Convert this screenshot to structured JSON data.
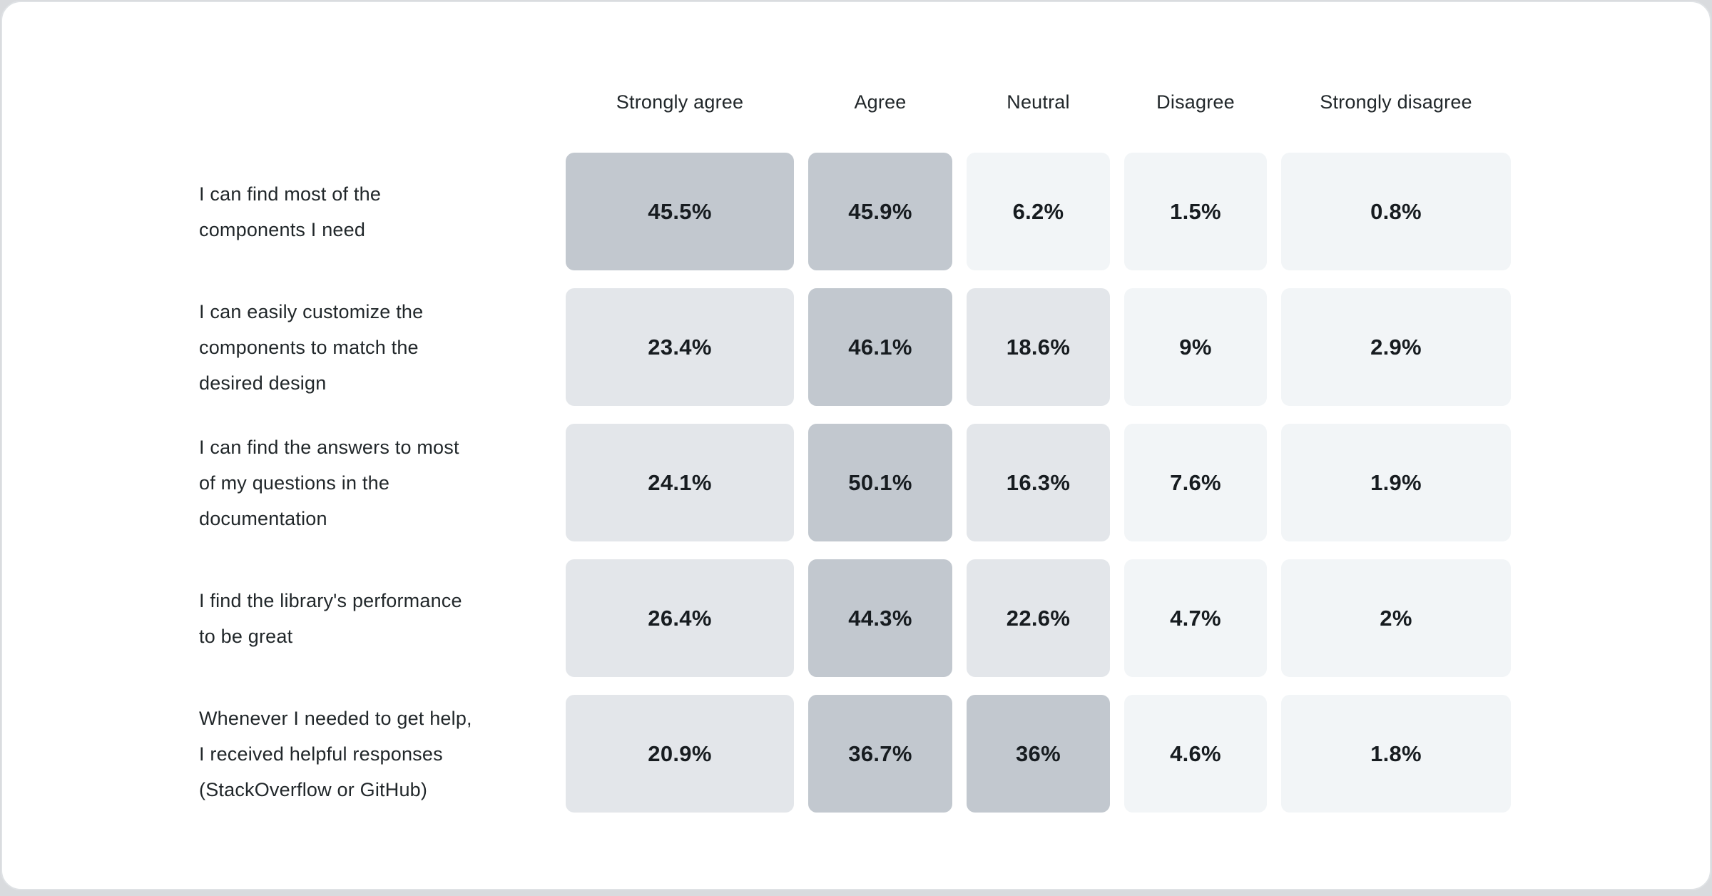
{
  "page": {
    "background": "#d9dbde",
    "card_background": "#ffffff",
    "card_border": "#dfe2e5"
  },
  "chart_data": {
    "type": "heatmap",
    "title": "",
    "legend_position": "none",
    "columns": [
      "Strongly agree",
      "Agree",
      "Neutral",
      "Disagree",
      "Strongly disagree"
    ],
    "rows": [
      {
        "label": "I can find most of the components I need",
        "label_lines": [
          "I can find most of the",
          "components I need"
        ],
        "values": [
          45.5,
          45.9,
          6.2,
          1.5,
          0.8
        ],
        "cell_labels": [
          "45.5%",
          "45.9%",
          "6.2%",
          "1.5%",
          "0.8%"
        ]
      },
      {
        "label": "I can easily customize the components to match the desired design",
        "label_lines": [
          "I can easily customize the",
          "components to match the",
          "desired design"
        ],
        "values": [
          23.4,
          46.1,
          18.6,
          9,
          2.9
        ],
        "cell_labels": [
          "23.4%",
          "46.1%",
          "18.6%",
          "9%",
          "2.9%"
        ]
      },
      {
        "label": "I can find the answers to most of my questions in the documentation",
        "label_lines": [
          "I can find the answers to most",
          "of my questions in the",
          "documentation"
        ],
        "values": [
          24.1,
          50.1,
          16.3,
          7.6,
          1.9
        ],
        "cell_labels": [
          "24.1%",
          "50.1%",
          "16.3%",
          "7.6%",
          "1.9%"
        ]
      },
      {
        "label": "I find the library's performance to be great",
        "label_lines": [
          "I find the library's performance",
          "to be great"
        ],
        "values": [
          26.4,
          44.3,
          22.6,
          4.7,
          2
        ],
        "cell_labels": [
          "26.4%",
          "44.3%",
          "22.6%",
          "4.7%",
          "2%"
        ]
      },
      {
        "label": "Whenever I needed to get help, I received helpful responses (StackOverflow or GitHub)",
        "label_lines": [
          "Whenever I needed to get help,",
          "I received helpful responses",
          "(StackOverflow or GitHub)"
        ],
        "values": [
          20.9,
          36.7,
          36,
          4.6,
          1.8
        ],
        "cell_labels": [
          "20.9%",
          "36.7%",
          "36%",
          "4.6%",
          "1.8%"
        ]
      }
    ],
    "value_format": "percent",
    "color_scale": {
      "high": "#c2c8cf",
      "mid": "#e3e6ea",
      "low": "#f2f5f7",
      "thresholds": [
        10,
        30
      ]
    },
    "value_range": [
      0,
      100
    ]
  }
}
